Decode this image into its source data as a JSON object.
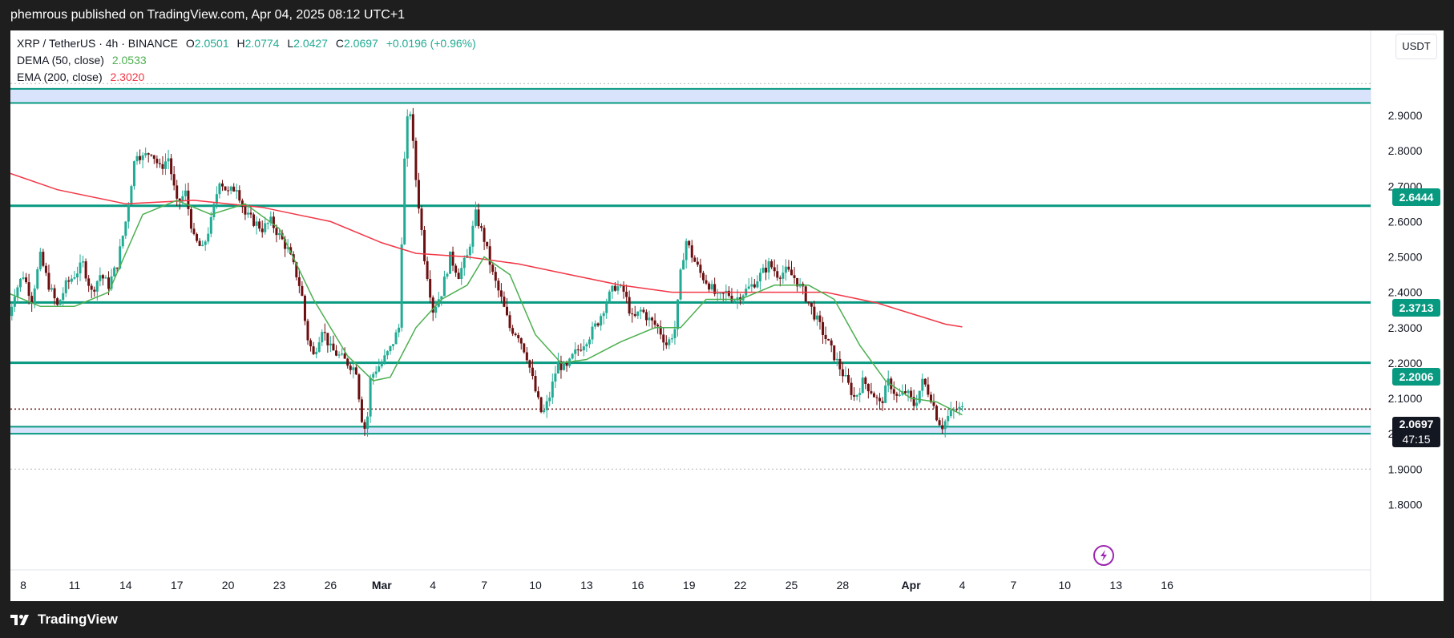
{
  "header": {
    "published_text": "phemrous published on TradingView.com, Apr 04, 2025 08:12 UTC+1"
  },
  "legend": {
    "symbol": "XRP / TetherUS · 4h · BINANCE",
    "o_label": "O",
    "o_val": "2.0501",
    "h_label": "H",
    "h_val": "2.0774",
    "l_label": "L",
    "l_val": "2.0427",
    "c_label": "C",
    "c_val": "2.0697",
    "change": "+0.0196 (+0.96%)",
    "dema_label": "DEMA (50, close)",
    "dema_val": "2.0533",
    "ema_label": "EMA (200, close)",
    "ema_val": "2.3020"
  },
  "axis": {
    "currency_button": "USDT"
  },
  "price_tags": {
    "r1": "2.6444",
    "r2": "2.3713",
    "r3": "2.2006",
    "last_price": "2.0697",
    "countdown": "47:15"
  },
  "footer": {
    "brand": "TradingView"
  },
  "colors": {
    "up": "#22ab94",
    "down": "#6b0f10",
    "level_line": "#089981",
    "ema": "#f23645",
    "dema": "#4caf50",
    "zone_fill": "#c9d9fb"
  },
  "chart_data": {
    "type": "candlestick",
    "symbol": "XRP / TetherUS",
    "interval": "4h",
    "exchange": "BINANCE",
    "y_ticks": [
      2.9,
      2.8,
      2.7,
      2.6,
      2.5,
      2.4,
      2.3,
      2.2,
      2.1,
      2.0,
      1.9,
      1.8
    ],
    "x_ticks": [
      {
        "label": "8",
        "day": 8
      },
      {
        "label": "11",
        "day": 11
      },
      {
        "label": "14",
        "day": 14
      },
      {
        "label": "17",
        "day": 17
      },
      {
        "label": "20",
        "day": 20
      },
      {
        "label": "23",
        "day": 23
      },
      {
        "label": "26",
        "day": 26
      },
      {
        "label": "Mar",
        "day": 29,
        "bold": true
      },
      {
        "label": "4",
        "day": 32
      },
      {
        "label": "7",
        "day": 35
      },
      {
        "label": "10",
        "day": 38
      },
      {
        "label": "13",
        "day": 41
      },
      {
        "label": "16",
        "day": 44
      },
      {
        "label": "19",
        "day": 47
      },
      {
        "label": "22",
        "day": 50
      },
      {
        "label": "25",
        "day": 53
      },
      {
        "label": "28",
        "day": 56
      },
      {
        "label": "Apr",
        "day": 60,
        "bold": true
      },
      {
        "label": "4",
        "day": 63
      },
      {
        "label": "7",
        "day": 66
      },
      {
        "label": "10",
        "day": 69
      },
      {
        "label": "13",
        "day": 72
      },
      {
        "label": "16",
        "day": 75
      }
    ],
    "horizontal_levels": [
      2.6444,
      2.3713,
      2.2006
    ],
    "zones": [
      {
        "low": 2.935,
        "high": 2.975
      },
      {
        "low": 2.0,
        "high": 2.02
      }
    ],
    "dotted_levels": [
      2.99,
      1.9
    ],
    "last_price": 2.0697,
    "anchors": [
      [
        7.0,
        2.3
      ],
      [
        7.5,
        2.4
      ],
      [
        8.0,
        2.45
      ],
      [
        8.5,
        2.38
      ],
      [
        9.0,
        2.5
      ],
      [
        9.5,
        2.42
      ],
      [
        10.0,
        2.36
      ],
      [
        10.5,
        2.42
      ],
      [
        11.0,
        2.45
      ],
      [
        11.5,
        2.48
      ],
      [
        12.0,
        2.4
      ],
      [
        12.5,
        2.45
      ],
      [
        13.0,
        2.42
      ],
      [
        13.5,
        2.48
      ],
      [
        14.0,
        2.6
      ],
      [
        14.3,
        2.7
      ],
      [
        14.6,
        2.8
      ],
      [
        15.0,
        2.78
      ],
      [
        15.5,
        2.8
      ],
      [
        16.0,
        2.75
      ],
      [
        16.5,
        2.78
      ],
      [
        17.0,
        2.65
      ],
      [
        17.5,
        2.68
      ],
      [
        18.0,
        2.55
      ],
      [
        18.5,
        2.52
      ],
      [
        19.0,
        2.6
      ],
      [
        19.5,
        2.72
      ],
      [
        20.0,
        2.68
      ],
      [
        20.5,
        2.7
      ],
      [
        21.0,
        2.62
      ],
      [
        21.5,
        2.6
      ],
      [
        22.0,
        2.58
      ],
      [
        22.5,
        2.6
      ],
      [
        23.0,
        2.56
      ],
      [
        23.5,
        2.52
      ],
      [
        24.0,
        2.45
      ],
      [
        24.3,
        2.4
      ],
      [
        24.6,
        2.28
      ],
      [
        25.0,
        2.22
      ],
      [
        25.5,
        2.3
      ],
      [
        26.0,
        2.24
      ],
      [
        26.5,
        2.22
      ],
      [
        27.0,
        2.2
      ],
      [
        27.5,
        2.18
      ],
      [
        27.8,
        2.05
      ],
      [
        28.1,
        2.0
      ],
      [
        28.3,
        2.15
      ],
      [
        28.6,
        2.18
      ],
      [
        29.0,
        2.2
      ],
      [
        29.5,
        2.24
      ],
      [
        30.0,
        2.3
      ],
      [
        30.3,
        2.75
      ],
      [
        30.6,
        2.95
      ],
      [
        31.0,
        2.72
      ],
      [
        31.5,
        2.5
      ],
      [
        32.0,
        2.35
      ],
      [
        32.5,
        2.4
      ],
      [
        33.0,
        2.5
      ],
      [
        33.5,
        2.45
      ],
      [
        34.0,
        2.5
      ],
      [
        34.5,
        2.62
      ],
      [
        35.0,
        2.55
      ],
      [
        35.5,
        2.45
      ],
      [
        36.0,
        2.38
      ],
      [
        36.5,
        2.3
      ],
      [
        37.0,
        2.28
      ],
      [
        37.5,
        2.22
      ],
      [
        38.0,
        2.12
      ],
      [
        38.4,
        2.05
      ],
      [
        38.8,
        2.1
      ],
      [
        39.3,
        2.2
      ],
      [
        39.8,
        2.18
      ],
      [
        40.2,
        2.22
      ],
      [
        40.7,
        2.25
      ],
      [
        41.2,
        2.28
      ],
      [
        41.7,
        2.32
      ],
      [
        42.2,
        2.38
      ],
      [
        42.7,
        2.42
      ],
      [
        43.2,
        2.4
      ],
      [
        43.7,
        2.32
      ],
      [
        44.2,
        2.35
      ],
      [
        44.7,
        2.32
      ],
      [
        45.2,
        2.3
      ],
      [
        45.7,
        2.25
      ],
      [
        46.2,
        2.3
      ],
      [
        46.5,
        2.45
      ],
      [
        46.8,
        2.55
      ],
      [
        47.2,
        2.5
      ],
      [
        47.7,
        2.45
      ],
      [
        48.2,
        2.42
      ],
      [
        48.7,
        2.38
      ],
      [
        49.2,
        2.4
      ],
      [
        49.7,
        2.38
      ],
      [
        50.2,
        2.4
      ],
      [
        50.7,
        2.42
      ],
      [
        51.2,
        2.45
      ],
      [
        51.7,
        2.48
      ],
      [
        52.2,
        2.45
      ],
      [
        52.7,
        2.46
      ],
      [
        53.2,
        2.44
      ],
      [
        53.7,
        2.4
      ],
      [
        54.2,
        2.35
      ],
      [
        54.7,
        2.3
      ],
      [
        55.2,
        2.25
      ],
      [
        55.7,
        2.2
      ],
      [
        56.2,
        2.15
      ],
      [
        56.7,
        2.1
      ],
      [
        57.2,
        2.15
      ],
      [
        57.7,
        2.12
      ],
      [
        58.2,
        2.08
      ],
      [
        58.7,
        2.15
      ],
      [
        59.2,
        2.1
      ],
      [
        59.7,
        2.12
      ],
      [
        60.2,
        2.08
      ],
      [
        60.7,
        2.15
      ],
      [
        61.2,
        2.1
      ],
      [
        61.5,
        2.05
      ],
      [
        61.8,
        2.02
      ],
      [
        62.2,
        2.05
      ],
      [
        62.6,
        2.07
      ],
      [
        63.0,
        2.0697
      ]
    ],
    "ema200": [
      [
        7.0,
        2.74
      ],
      [
        10.0,
        2.69
      ],
      [
        14.0,
        2.65
      ],
      [
        18.0,
        2.66
      ],
      [
        22.0,
        2.64
      ],
      [
        26.0,
        2.6
      ],
      [
        29.0,
        2.54
      ],
      [
        31.0,
        2.51
      ],
      [
        34.0,
        2.5
      ],
      [
        37.0,
        2.48
      ],
      [
        40.0,
        2.45
      ],
      [
        43.0,
        2.42
      ],
      [
        46.0,
        2.4
      ],
      [
        49.0,
        2.4
      ],
      [
        52.0,
        2.4
      ],
      [
        55.0,
        2.4
      ],
      [
        58.0,
        2.37
      ],
      [
        60.0,
        2.34
      ],
      [
        62.0,
        2.31
      ],
      [
        63.0,
        2.302
      ]
    ],
    "dema50": [
      [
        7.0,
        2.4
      ],
      [
        9.0,
        2.36
      ],
      [
        11.0,
        2.36
      ],
      [
        13.0,
        2.4
      ],
      [
        15.0,
        2.62
      ],
      [
        17.0,
        2.66
      ],
      [
        19.0,
        2.62
      ],
      [
        21.0,
        2.65
      ],
      [
        23.0,
        2.58
      ],
      [
        25.0,
        2.38
      ],
      [
        27.0,
        2.22
      ],
      [
        28.5,
        2.15
      ],
      [
        29.5,
        2.16
      ],
      [
        31.0,
        2.3
      ],
      [
        32.5,
        2.38
      ],
      [
        34.0,
        2.42
      ],
      [
        35.0,
        2.5
      ],
      [
        36.5,
        2.45
      ],
      [
        38.0,
        2.28
      ],
      [
        39.5,
        2.2
      ],
      [
        41.0,
        2.21
      ],
      [
        43.0,
        2.26
      ],
      [
        45.0,
        2.3
      ],
      [
        46.5,
        2.3
      ],
      [
        48.0,
        2.38
      ],
      [
        50.0,
        2.38
      ],
      [
        52.0,
        2.42
      ],
      [
        54.0,
        2.42
      ],
      [
        55.5,
        2.38
      ],
      [
        57.0,
        2.25
      ],
      [
        58.5,
        2.15
      ],
      [
        60.0,
        2.1
      ],
      [
        61.5,
        2.09
      ],
      [
        63.0,
        2.0533
      ]
    ]
  }
}
